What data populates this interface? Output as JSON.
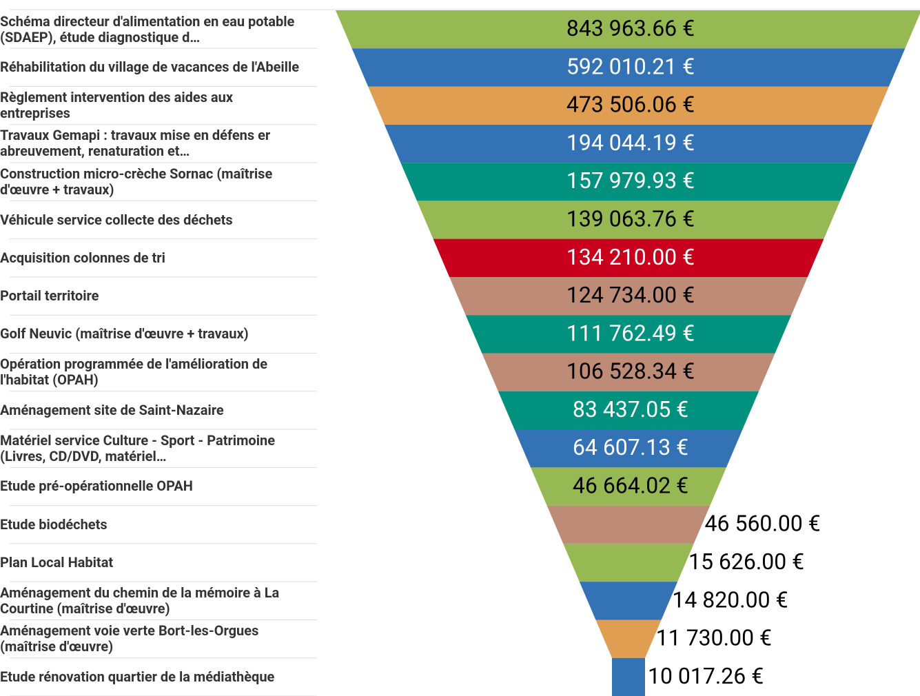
{
  "chart_data": {
    "type": "funnel",
    "categories": [
      "Schéma directeur d'alimentation en eau potable (SDAEP), étude diagnostique d…",
      "Réhabilitation du village de vacances de l'Abeille",
      "Règlement intervention des aides aux entreprises",
      "Travaux Gemapi : travaux mise en défens er abreuvement, renaturation et…",
      "Construction micro-crèche Sornac (maîtrise d'œuvre + travaux)",
      "Véhicule service collecte des déchets",
      "Acquisition colonnes de tri",
      "Portail territoire",
      "Golf Neuvic (maîtrise d'œuvre + travaux)",
      "Opération programmée de l'amélioration de l'habitat (OPAH)",
      "Aménagement site de Saint-Nazaire",
      "Matériel service Culture - Sport - Patrimoine (Livres, CD/DVD, matériel…",
      "Etude pré-opérationnelle OPAH",
      "Etude biodéchets",
      "Plan Local Habitat",
      "Aménagement du chemin de la mémoire à La Courtine (maîtrise d'œuvre)",
      "Aménagement voie verte Bort-les-Orgues (maîtrise d'œuvre)",
      "Etude rénovation quartier de la médiathèque"
    ],
    "values": [
      843963.66,
      592010.21,
      473506.06,
      194044.19,
      157979.93,
      139063.76,
      134210.0,
      124734.0,
      111762.49,
      106528.34,
      83437.05,
      64607.13,
      46664.02,
      46560.0,
      15626.0,
      14820.0,
      11730.0,
      10017.26
    ],
    "value_labels": [
      "843 963.66 €",
      "592 010.21 €",
      "473 506.06 €",
      "194 044.19 €",
      "157 979.93 €",
      "139 063.76 €",
      "134 210.00 €",
      "124 734.00 €",
      "111 762.49 €",
      "106 528.34 €",
      "83 437.05 €",
      "64 607.13 €",
      "46 664.02 €",
      "46 560.00 €",
      "15 626.00 €",
      "14 820.00 €",
      "11 730.00 €",
      "10 017.26 €"
    ],
    "colors": [
      "#97b954",
      "#3373b5",
      "#e09e52",
      "#3373b5",
      "#00927e",
      "#97b954",
      "#c8001e",
      "#bd8b76",
      "#00927e",
      "#bd8b76",
      "#00927e",
      "#3373b5",
      "#97b954",
      "#bd8b76",
      "#97b954",
      "#3373b5",
      "#e09e52",
      "#3373b5"
    ]
  }
}
